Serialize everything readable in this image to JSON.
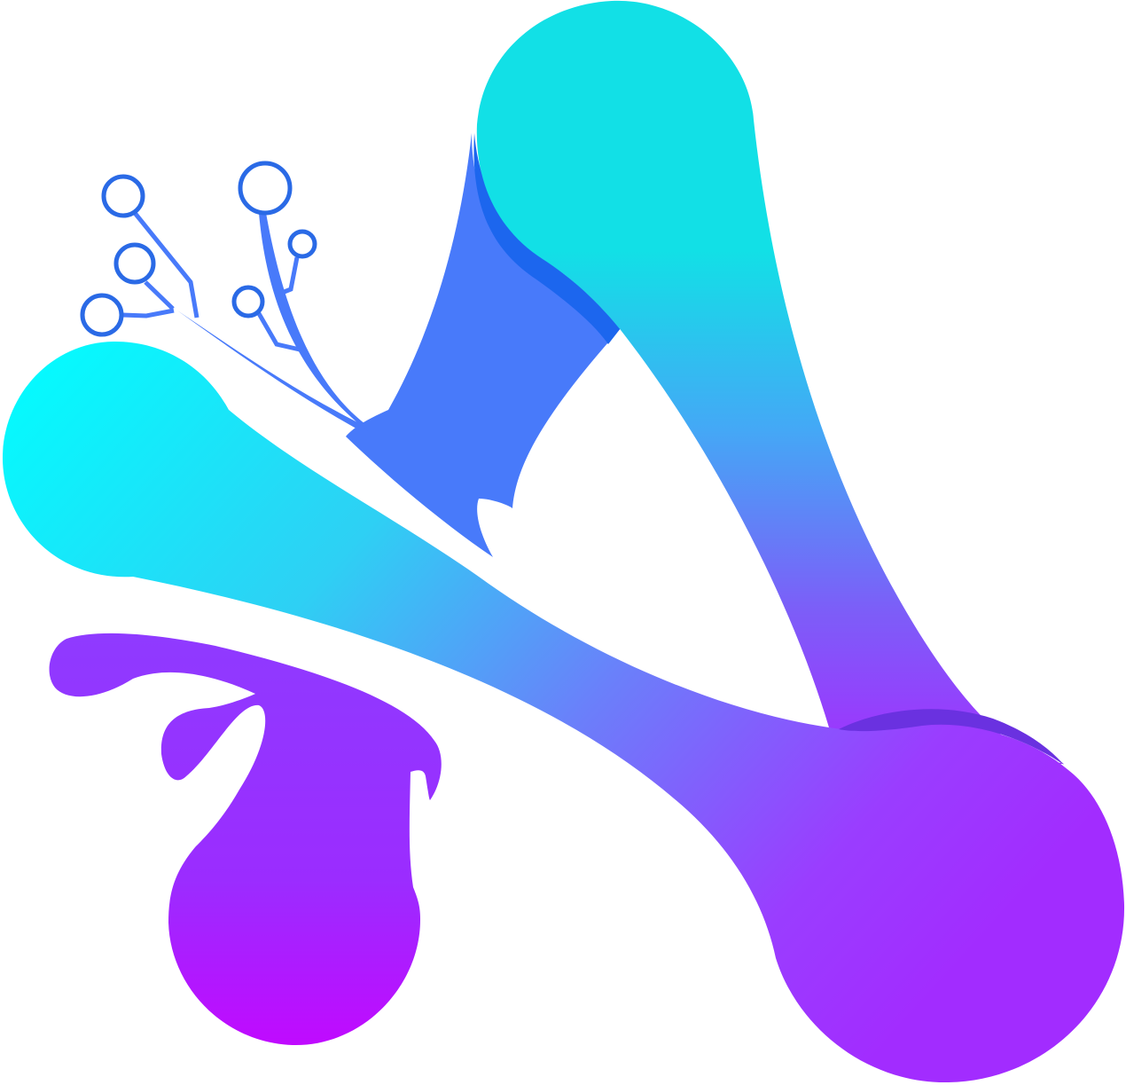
{
  "logo": {
    "colors": {
      "cyan": "#12E0E6",
      "cyan_bright": "#00FFFF",
      "sky": "#44A8F6",
      "royal_blue": "#487AFA",
      "deep_blue": "#1C66EE",
      "circuit_blue": "#2A6AE6",
      "violet": "#8F3AFF",
      "deep_violet": "#6A31E0",
      "magenta": "#C00AFF",
      "background": "#FFFFFF"
    },
    "icons": [
      "abstract-a-logo-mark",
      "circuit-node-icon"
    ]
  }
}
